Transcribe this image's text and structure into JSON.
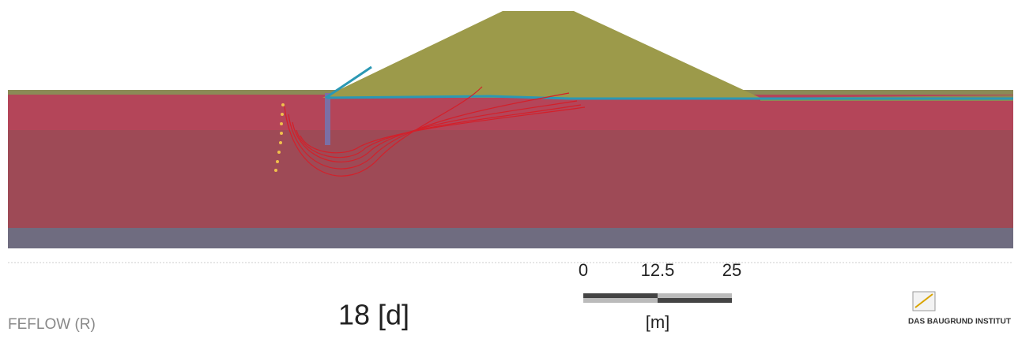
{
  "footer": {
    "software": "FEFLOW (R)",
    "time": "18 [d]"
  },
  "scale_bar": {
    "labels": [
      "0",
      "12.5",
      "25"
    ],
    "unit": "[m]"
  },
  "logo": {
    "name": "DAS BAUGRUND INSTITUT"
  }
}
